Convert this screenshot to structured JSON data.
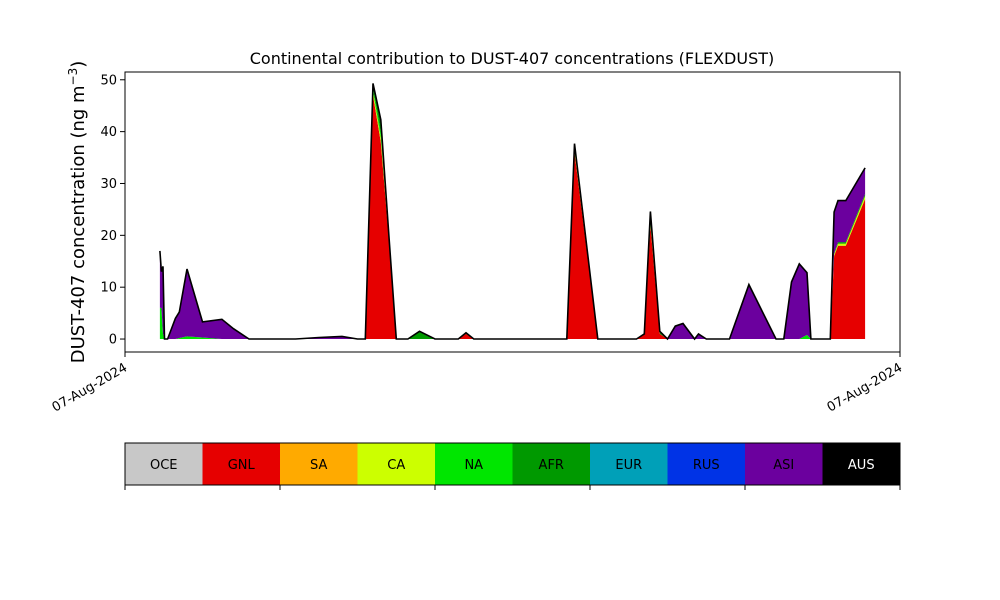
{
  "chart_data": {
    "type": "area",
    "title": "Continental contribution to DUST-407 concentrations (FLEXDUST)",
    "ylabel_main": "DUST-407 concentration (ng m",
    "ylabel_sup": "−3",
    "ylabel_close": ")",
    "xlabel": "",
    "x_tick_labels": [
      "07-Aug-2024",
      "07-Aug-2024"
    ],
    "ylim": [
      -2.5,
      51.5
    ],
    "y_ticks": [
      0,
      10,
      20,
      30,
      40,
      50
    ],
    "xlim": [
      0,
      100
    ],
    "grid": false,
    "colorbar_categories": [
      {
        "label": "OCE",
        "color": "#c8c8c8",
        "text_color": "#000000"
      },
      {
        "label": "GNL",
        "color": "#e60000",
        "text_color": "#000000"
      },
      {
        "label": "SA",
        "color": "#ffaa00",
        "text_color": "#000000"
      },
      {
        "label": "CA",
        "color": "#ccff00",
        "text_color": "#000000"
      },
      {
        "label": "NA",
        "color": "#00e600",
        "text_color": "#000000"
      },
      {
        "label": "AFR",
        "color": "#009900",
        "text_color": "#000000"
      },
      {
        "label": "EUR",
        "color": "#00a0b8",
        "text_color": "#000000"
      },
      {
        "label": "RUS",
        "color": "#0033e6",
        "text_color": "#000000"
      },
      {
        "label": "ASI",
        "color": "#6b009e",
        "text_color": "#000000"
      },
      {
        "label": "AUS",
        "color": "#000000",
        "text_color": "#ffffff"
      }
    ],
    "x": [
      4.5,
      4.7,
      4.9,
      5.1,
      5.5,
      6.5,
      7.0,
      8.0,
      10.0,
      12.5,
      14.0,
      16.0,
      18.0,
      20.0,
      22.0,
      25.0,
      28.0,
      30.0,
      31.0,
      32.0,
      33.0,
      34.0,
      35.0,
      36.0,
      36.5,
      38.0,
      40.0,
      41.0,
      43.0,
      44.0,
      45.0,
      46.0,
      48.0,
      50.0,
      55.0,
      56.5,
      57.0,
      58.0,
      61.0,
      64.0,
      66.0,
      67.0,
      67.8,
      69.0,
      70.0,
      71.0,
      72.0,
      73.5,
      74.0,
      75.0,
      76.5,
      77.0,
      78.0,
      80.5,
      82.0,
      84.0,
      85.0,
      86.0,
      87.0,
      88.0,
      88.5,
      90.0,
      91.0,
      91.5,
      92.0,
      93.0,
      95.5
    ],
    "series": [
      {
        "name": "GNL",
        "color": "#e60000",
        "values": [
          0,
          0,
          0,
          0,
          0,
          0,
          0,
          0,
          0,
          0,
          0,
          0,
          0,
          0,
          0,
          0,
          0,
          0,
          0,
          47,
          38,
          20,
          0,
          0,
          0,
          0,
          0,
          0,
          0,
          1,
          0,
          0,
          0,
          0,
          0,
          0,
          0,
          36,
          0,
          0,
          0,
          1,
          22,
          1,
          0,
          0,
          0,
          0,
          0,
          0,
          0,
          0,
          0,
          0,
          0,
          0,
          0,
          0,
          0,
          0,
          0,
          0,
          0,
          16,
          18,
          18,
          27
        ]
      },
      {
        "name": "CA",
        "color": "#ccff00",
        "values": [
          0,
          0,
          0,
          0,
          0,
          0,
          0,
          0,
          0,
          0,
          0,
          0,
          0,
          0,
          0,
          0,
          0,
          0,
          0,
          0.8,
          0.8,
          0.3,
          0,
          0,
          0,
          0,
          0,
          0,
          0,
          0,
          0,
          0,
          0,
          0,
          0,
          0,
          0,
          0.4,
          0,
          0,
          0,
          0,
          0.3,
          0,
          0,
          0,
          0,
          0,
          0,
          0,
          0,
          0,
          0,
          0,
          0,
          0,
          0,
          0,
          0,
          0,
          0,
          0,
          0,
          0.3,
          0.4,
          0.4,
          0.6
        ]
      },
      {
        "name": "NA",
        "color": "#00e600",
        "values": [
          6,
          6,
          1,
          0,
          0,
          0,
          0.2,
          0.5,
          0.3,
          0,
          0,
          0,
          0,
          0,
          0,
          0,
          0,
          0,
          0,
          0.5,
          1.0,
          0.3,
          0,
          0,
          0,
          0,
          0,
          0,
          0,
          0,
          0,
          0,
          0,
          0,
          0,
          0,
          0,
          0.5,
          0,
          0,
          0,
          0,
          0.3,
          0,
          0,
          0,
          0,
          0,
          0,
          0,
          0,
          0,
          0,
          0,
          0,
          0,
          0,
          0,
          0,
          0.8,
          0,
          0,
          0,
          0,
          0,
          0,
          0
        ]
      },
      {
        "name": "AFR",
        "color": "#009900",
        "values": [
          0,
          0,
          0,
          0,
          0,
          0,
          0,
          0,
          0,
          0,
          0,
          0,
          0,
          0,
          0,
          0,
          0,
          0,
          0,
          0.5,
          2.0,
          0.2,
          0,
          0,
          0,
          1.5,
          0,
          0,
          0,
          0.2,
          0,
          0,
          0,
          0,
          0,
          0,
          0,
          0.5,
          0,
          0,
          0,
          0,
          0.5,
          0.3,
          0,
          0,
          0,
          0,
          0,
          0,
          0,
          0,
          0,
          0,
          0,
          0,
          0,
          0,
          0,
          0,
          0,
          0,
          0,
          0.2,
          0.3,
          0.3,
          0.4
        ]
      },
      {
        "name": "ASI",
        "color": "#6b009e",
        "values": [
          11,
          7,
          13,
          0,
          0,
          4,
          5,
          13,
          3,
          3.8,
          2,
          0,
          0,
          0,
          0,
          0.3,
          0.5,
          0,
          0,
          0.5,
          0.5,
          0.2,
          0,
          0,
          0,
          0,
          0,
          0,
          0,
          0,
          0,
          0,
          0,
          0,
          0,
          0,
          0,
          0.3,
          0,
          0,
          0,
          0,
          1.5,
          0.2,
          0,
          2.5,
          3,
          0,
          1,
          0,
          0,
          0,
          0,
          10.5,
          6,
          0,
          0,
          11,
          14.5,
          12,
          0,
          0,
          0,
          8,
          8,
          8,
          5
        ]
      },
      {
        "name": "AUS",
        "color": "#000000",
        "values": [
          0,
          0,
          0,
          0,
          0,
          0,
          0,
          0,
          0,
          0,
          0,
          0,
          0,
          0,
          0,
          0,
          0,
          0,
          0,
          0,
          0,
          0,
          0,
          0,
          0,
          0,
          0,
          0,
          0,
          0,
          0,
          0,
          0,
          0,
          0,
          0,
          0,
          0,
          0,
          0,
          0,
          0,
          0,
          0,
          0,
          0,
          0,
          0,
          0,
          0,
          0,
          0,
          0,
          0,
          0,
          0,
          0,
          0,
          0,
          0,
          0,
          0,
          0,
          0,
          0,
          0,
          0
        ]
      }
    ]
  }
}
